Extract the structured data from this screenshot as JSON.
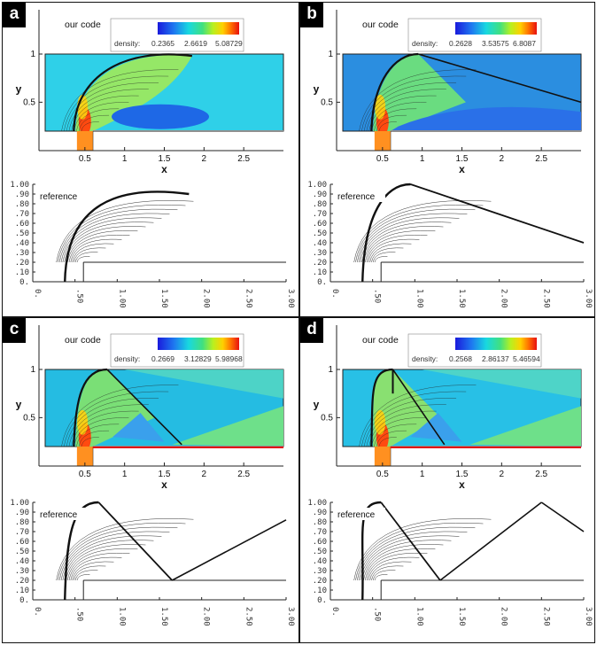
{
  "figure": {
    "panels": [
      {
        "letter": "a",
        "our_code_label": "our code",
        "legend": {
          "label": "density:",
          "values": [
            "0.2365",
            "2.6619",
            "5.08729"
          ]
        },
        "x_axis_label": "x",
        "y_axis_label": "y",
        "x_ticks": [
          "0.5",
          "1",
          "1.5",
          "2",
          "2.5"
        ],
        "y_ticks": [
          "1",
          "0.5"
        ],
        "reference_label": "reference",
        "ref_y_ticks": [
          "1.00",
          ".90",
          ".80",
          ".70",
          ".60",
          ".50",
          ".40",
          ".30",
          ".20",
          ".10",
          "0."
        ],
        "ref_x_ticks": [
          "0.",
          ".50",
          "1.00",
          "1.50",
          "2.00",
          "2.50",
          "3.00"
        ]
      },
      {
        "letter": "b",
        "our_code_label": "our code",
        "legend": {
          "label": "density:",
          "values": [
            "0.2628",
            "3.53575",
            "6.8087"
          ]
        },
        "x_axis_label": "x",
        "y_axis_label": "y",
        "x_ticks": [
          "0.5",
          "1",
          "1.5",
          "2",
          "2.5"
        ],
        "y_ticks": [
          "1",
          "0.5"
        ],
        "reference_label": "reference",
        "ref_y_ticks": [
          "1.00",
          ".90",
          ".80",
          ".70",
          ".60",
          ".50",
          ".40",
          ".30",
          ".20",
          ".10",
          "0."
        ],
        "ref_x_ticks": [
          "0.",
          ".50",
          "1.00",
          "1.50",
          "2.00",
          "2.50",
          "3.00"
        ]
      },
      {
        "letter": "c",
        "our_code_label": "our code",
        "legend": {
          "label": "density:",
          "values": [
            "0.2669",
            "3.12829",
            "5.98968"
          ]
        },
        "x_axis_label": "x",
        "y_axis_label": "y",
        "x_ticks": [
          "0.5",
          "1",
          "1.5",
          "2",
          "2.5"
        ],
        "y_ticks": [
          "1",
          "0.5"
        ],
        "reference_label": "reference",
        "ref_y_ticks": [
          "1.00",
          ".90",
          ".80",
          ".70",
          ".60",
          ".50",
          ".40",
          ".30",
          ".20",
          ".10",
          "0."
        ],
        "ref_x_ticks": [
          "0.",
          ".50",
          "1.00",
          "1.50",
          "2.00",
          "2.50",
          "3.00"
        ]
      },
      {
        "letter": "d",
        "our_code_label": "our code",
        "legend": {
          "label": "density:",
          "values": [
            "0.2568",
            "2.86137",
            "5.46594"
          ]
        },
        "x_axis_label": "x",
        "y_axis_label": "y",
        "x_ticks": [
          "0.5",
          "1",
          "1.5",
          "2",
          "2.5"
        ],
        "y_ticks": [
          "1",
          "0.5"
        ],
        "reference_label": "reference",
        "ref_y_ticks": [
          "1.00",
          ".90",
          ".80",
          ".70",
          ".60",
          ".50",
          ".40",
          ".30",
          ".20",
          ".10",
          "0."
        ],
        "ref_x_ticks": [
          "0.",
          ".50",
          "1.00",
          "1.50",
          "2.00",
          "2.50",
          "3.00"
        ]
      }
    ]
  }
}
